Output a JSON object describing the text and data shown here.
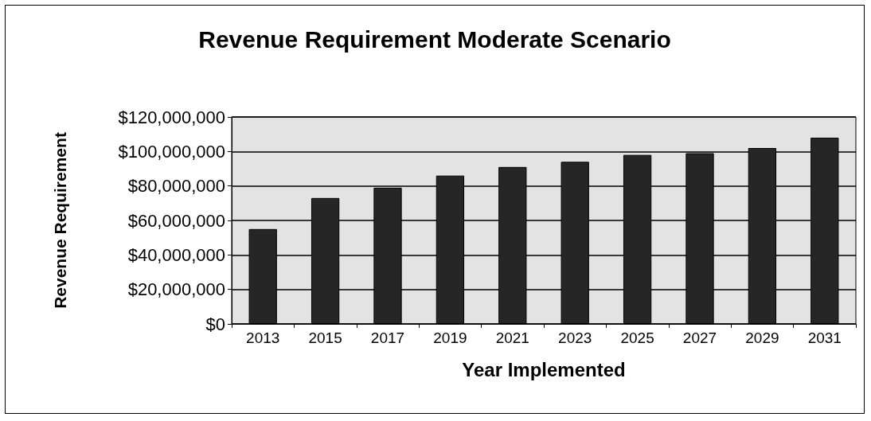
{
  "chart_data": {
    "type": "bar",
    "title": "Revenue Requirement Moderate Scenario",
    "xlabel": "Year Implemented",
    "ylabel": "Revenue Requirement",
    "categories": [
      "2013",
      "2015",
      "2017",
      "2019",
      "2021",
      "2023",
      "2025",
      "2027",
      "2029",
      "2031"
    ],
    "values": [
      55000000,
      73000000,
      79000000,
      86000000,
      91000000,
      94000000,
      98000000,
      99000000,
      102000000,
      108000000
    ],
    "color": "#262626",
    "ylim": [
      0,
      120000000
    ],
    "yticks": [
      {
        "value": 0,
        "label": "$0"
      },
      {
        "value": 20000000,
        "label": "$20,000,000"
      },
      {
        "value": 40000000,
        "label": "$40,000,000"
      },
      {
        "value": 60000000,
        "label": "$60,000,000"
      },
      {
        "value": 80000000,
        "label": "$80,000,000"
      },
      {
        "value": 100000000,
        "label": "$100,000,000"
      },
      {
        "value": 120000000,
        "label": "$120,000,000"
      }
    ],
    "grid": "y"
  }
}
